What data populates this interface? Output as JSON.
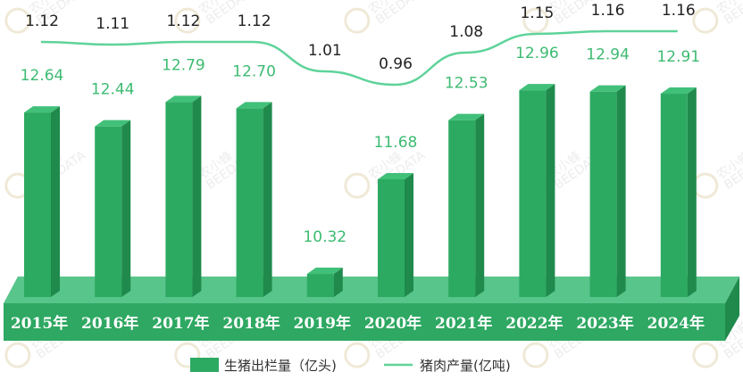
{
  "chart_data": {
    "type": "bar",
    "categories": [
      "2015年",
      "2016年",
      "2017年",
      "2018年",
      "2019年",
      "2020年",
      "2021年",
      "2022年",
      "2023年",
      "2024年"
    ],
    "series": [
      {
        "name": "生猪出栏量（亿头)",
        "type": "bar",
        "values": [
          12.64,
          12.44,
          12.79,
          12.7,
          10.32,
          11.68,
          12.53,
          12.96,
          12.94,
          12.91
        ],
        "color": "#2daa62"
      },
      {
        "name": "猪肉产量(亿吨)",
        "type": "line",
        "values": [
          1.12,
          1.11,
          1.12,
          1.12,
          1.01,
          0.96,
          1.08,
          1.15,
          1.16,
          1.16
        ],
        "color": "#5fd39a"
      }
    ],
    "grid": false,
    "legend_position": "bottom-center"
  },
  "colors": {
    "bar_front": "#2daa62",
    "bar_side": "#1f8a4c",
    "bar_top": "#41c079",
    "floor_top": "#58c58a",
    "floor_front": "#2ea862",
    "line": "#5fd39a",
    "bar_label": "#3dbb72"
  },
  "watermark": {
    "text": "农小蜂",
    "subtext": "BEEDATA"
  }
}
